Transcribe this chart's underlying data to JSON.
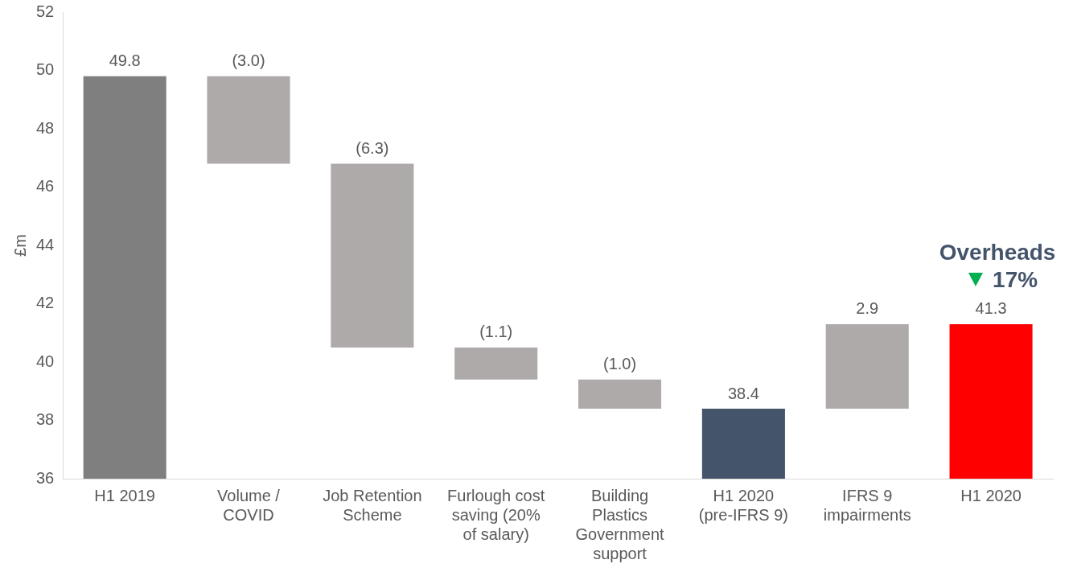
{
  "chart_data": {
    "type": "bar",
    "ylabel": "£m",
    "categories": [
      "H1 2019",
      "Volume / COVID",
      "Job Retention Scheme",
      "Furlough cost saving (20% of salary)",
      "Building Plastics Government support",
      "H1 2020 (pre-IFRS 9)",
      "IFRS 9 impairments",
      "H1 2020"
    ],
    "values": [
      49.8,
      -3.0,
      -6.3,
      -1.1,
      -1.0,
      38.4,
      2.9,
      41.3
    ],
    "base": [
      null,
      49.8,
      46.8,
      40.5,
      39.4,
      null,
      38.4,
      null
    ],
    "colors": [
      "#7f7f7f",
      "#aeaaaa",
      "#aeaaaa",
      "#aeaaaa",
      "#aeaaaa",
      "#44546a",
      "#aeaaaa",
      "#ff0000"
    ],
    "value_labels": [
      "49.8",
      "(3.0)",
      "(6.3)",
      "(1.1)",
      "(1.0)",
      "38.4",
      "2.9",
      "41.3"
    ],
    "annotations": [
      "Overheads",
      "17%"
    ],
    "ylim": [
      36,
      52
    ],
    "yticks": [
      36,
      38,
      40,
      42,
      44,
      46,
      48,
      50,
      52
    ],
    "grid": false,
    "legend": false
  }
}
